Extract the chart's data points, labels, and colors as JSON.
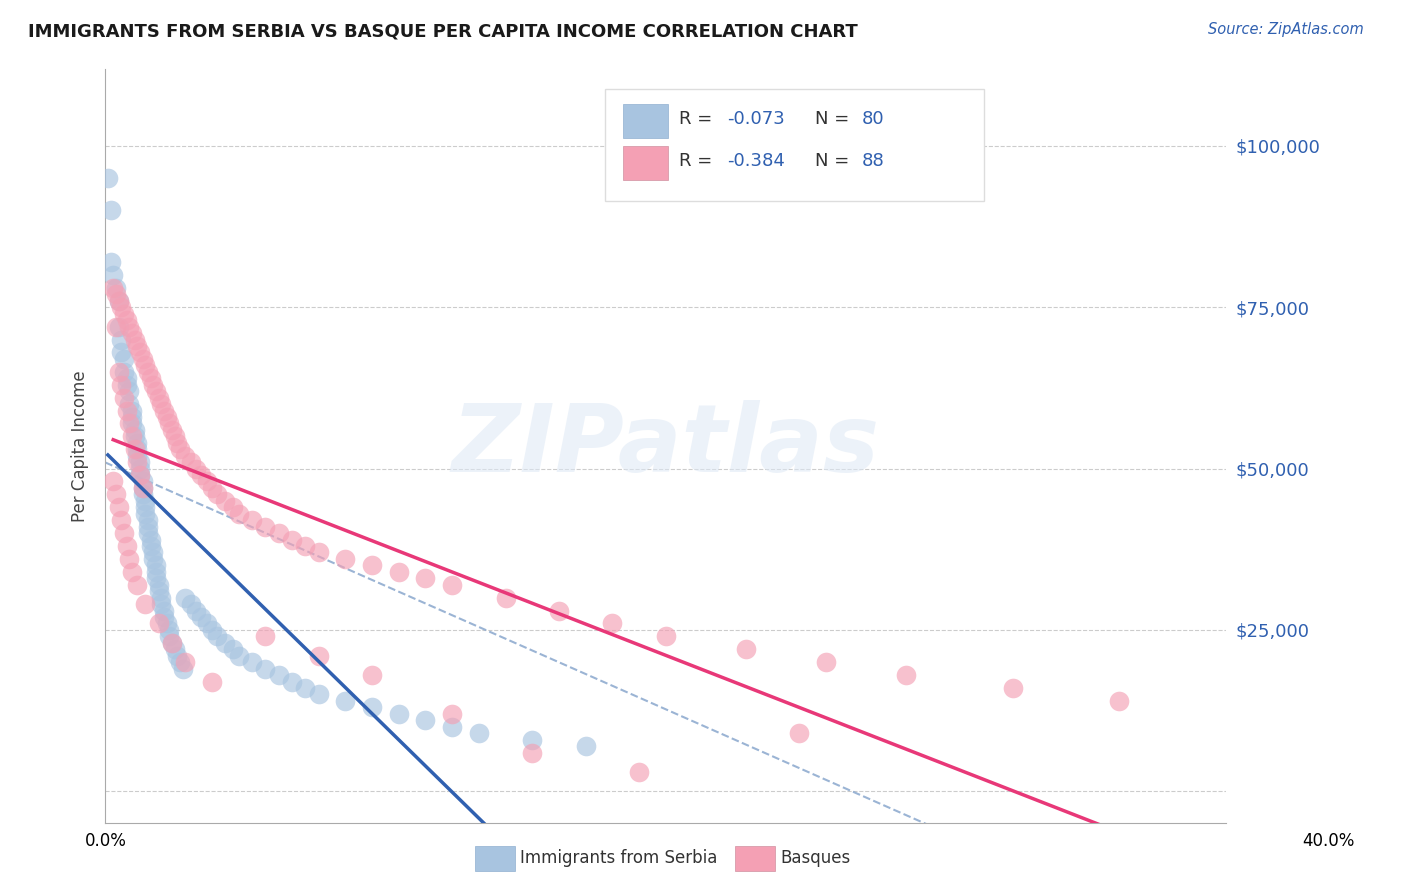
{
  "title": "IMMIGRANTS FROM SERBIA VS BASQUE PER CAPITA INCOME CORRELATION CHART",
  "source": "Source: ZipAtlas.com",
  "ylabel": "Per Capita Income",
  "legend_label1": "Immigrants from Serbia",
  "legend_label2": "Basques",
  "color_serbia": "#a8c4e0",
  "color_basque": "#f4a0b4",
  "color_serbia_line": "#3060b0",
  "color_basque_line": "#e83878",
  "color_dashed": "#90acd0",
  "yticks": [
    0,
    25000,
    50000,
    75000,
    100000
  ],
  "xlim": [
    0.0,
    0.42
  ],
  "ylim": [
    -5000,
    112000
  ],
  "serbia_x": [
    0.001,
    0.002,
    0.002,
    0.003,
    0.004,
    0.005,
    0.005,
    0.006,
    0.006,
    0.007,
    0.007,
    0.008,
    0.008,
    0.009,
    0.009,
    0.01,
    0.01,
    0.01,
    0.011,
    0.011,
    0.012,
    0.012,
    0.012,
    0.013,
    0.013,
    0.013,
    0.014,
    0.014,
    0.014,
    0.015,
    0.015,
    0.015,
    0.016,
    0.016,
    0.016,
    0.017,
    0.017,
    0.018,
    0.018,
    0.019,
    0.019,
    0.019,
    0.02,
    0.02,
    0.021,
    0.021,
    0.022,
    0.022,
    0.023,
    0.024,
    0.024,
    0.025,
    0.026,
    0.027,
    0.028,
    0.029,
    0.03,
    0.032,
    0.034,
    0.036,
    0.038,
    0.04,
    0.042,
    0.045,
    0.048,
    0.05,
    0.055,
    0.06,
    0.065,
    0.07,
    0.075,
    0.08,
    0.09,
    0.1,
    0.11,
    0.12,
    0.13,
    0.14,
    0.16,
    0.18
  ],
  "serbia_y": [
    95000,
    90000,
    82000,
    80000,
    78000,
    76000,
    72000,
    70000,
    68000,
    67000,
    65000,
    64000,
    63000,
    62000,
    60000,
    59000,
    58000,
    57000,
    56000,
    55000,
    54000,
    53000,
    52000,
    51000,
    50000,
    49000,
    48000,
    47000,
    46000,
    45000,
    44000,
    43000,
    42000,
    41000,
    40000,
    39000,
    38000,
    37000,
    36000,
    35000,
    34000,
    33000,
    32000,
    31000,
    30000,
    29000,
    28000,
    27000,
    26000,
    25000,
    24000,
    23000,
    22000,
    21000,
    20000,
    19000,
    30000,
    29000,
    28000,
    27000,
    26000,
    25000,
    24000,
    23000,
    22000,
    21000,
    20000,
    19000,
    18000,
    17000,
    16000,
    15000,
    14000,
    13000,
    12000,
    11000,
    10000,
    9000,
    8000,
    7000
  ],
  "basque_x": [
    0.003,
    0.004,
    0.004,
    0.005,
    0.005,
    0.006,
    0.006,
    0.007,
    0.007,
    0.008,
    0.008,
    0.009,
    0.009,
    0.01,
    0.01,
    0.011,
    0.011,
    0.012,
    0.012,
    0.013,
    0.013,
    0.014,
    0.014,
    0.015,
    0.016,
    0.017,
    0.018,
    0.019,
    0.02,
    0.021,
    0.022,
    0.023,
    0.024,
    0.025,
    0.026,
    0.027,
    0.028,
    0.03,
    0.032,
    0.034,
    0.036,
    0.038,
    0.04,
    0.042,
    0.045,
    0.048,
    0.05,
    0.055,
    0.06,
    0.065,
    0.07,
    0.075,
    0.08,
    0.09,
    0.1,
    0.11,
    0.12,
    0.13,
    0.15,
    0.17,
    0.19,
    0.21,
    0.24,
    0.27,
    0.3,
    0.34,
    0.38,
    0.003,
    0.004,
    0.005,
    0.006,
    0.007,
    0.008,
    0.009,
    0.01,
    0.012,
    0.015,
    0.02,
    0.025,
    0.03,
    0.04,
    0.06,
    0.08,
    0.1,
    0.13,
    0.16,
    0.2,
    0.26
  ],
  "basque_y": [
    78000,
    77000,
    72000,
    76000,
    65000,
    75000,
    63000,
    74000,
    61000,
    73000,
    59000,
    72000,
    57000,
    71000,
    55000,
    70000,
    53000,
    69000,
    51000,
    68000,
    49000,
    67000,
    47000,
    66000,
    65000,
    64000,
    63000,
    62000,
    61000,
    60000,
    59000,
    58000,
    57000,
    56000,
    55000,
    54000,
    53000,
    52000,
    51000,
    50000,
    49000,
    48000,
    47000,
    46000,
    45000,
    44000,
    43000,
    42000,
    41000,
    40000,
    39000,
    38000,
    37000,
    36000,
    35000,
    34000,
    33000,
    32000,
    30000,
    28000,
    26000,
    24000,
    22000,
    20000,
    18000,
    16000,
    14000,
    48000,
    46000,
    44000,
    42000,
    40000,
    38000,
    36000,
    34000,
    32000,
    29000,
    26000,
    23000,
    20000,
    17000,
    24000,
    21000,
    18000,
    12000,
    6000,
    3000,
    9000
  ]
}
